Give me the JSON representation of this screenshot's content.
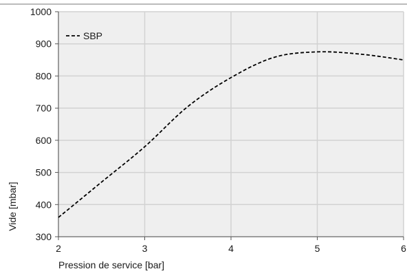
{
  "chart_data": {
    "type": "line",
    "title": "",
    "xlabel": "Pression de service [bar]",
    "ylabel": "Vide [mbar]",
    "xlim": [
      2,
      6
    ],
    "ylim": [
      300,
      1000
    ],
    "x_ticks": [
      "2",
      "3",
      "4",
      "5",
      "6"
    ],
    "y_ticks": [
      "300",
      "400",
      "500",
      "600",
      "700",
      "800",
      "900",
      "1000"
    ],
    "grid": true,
    "legend_position": "top-left",
    "series": [
      {
        "name": "SBP",
        "line_style": "dashed",
        "color": "#000000",
        "points": [
          {
            "x": 2.0,
            "y": 360
          },
          {
            "x": 2.5,
            "y": 470
          },
          {
            "x": 3.0,
            "y": 580
          },
          {
            "x": 3.5,
            "y": 705
          },
          {
            "x": 4.0,
            "y": 795
          },
          {
            "x": 4.5,
            "y": 858
          },
          {
            "x": 5.0,
            "y": 875
          },
          {
            "x": 5.5,
            "y": 868
          },
          {
            "x": 6.0,
            "y": 850
          }
        ]
      }
    ]
  },
  "colors": {
    "plot_background": "#efefef",
    "grid": "#d2d2d2",
    "axis": "#555555",
    "series_line": "#000000"
  }
}
